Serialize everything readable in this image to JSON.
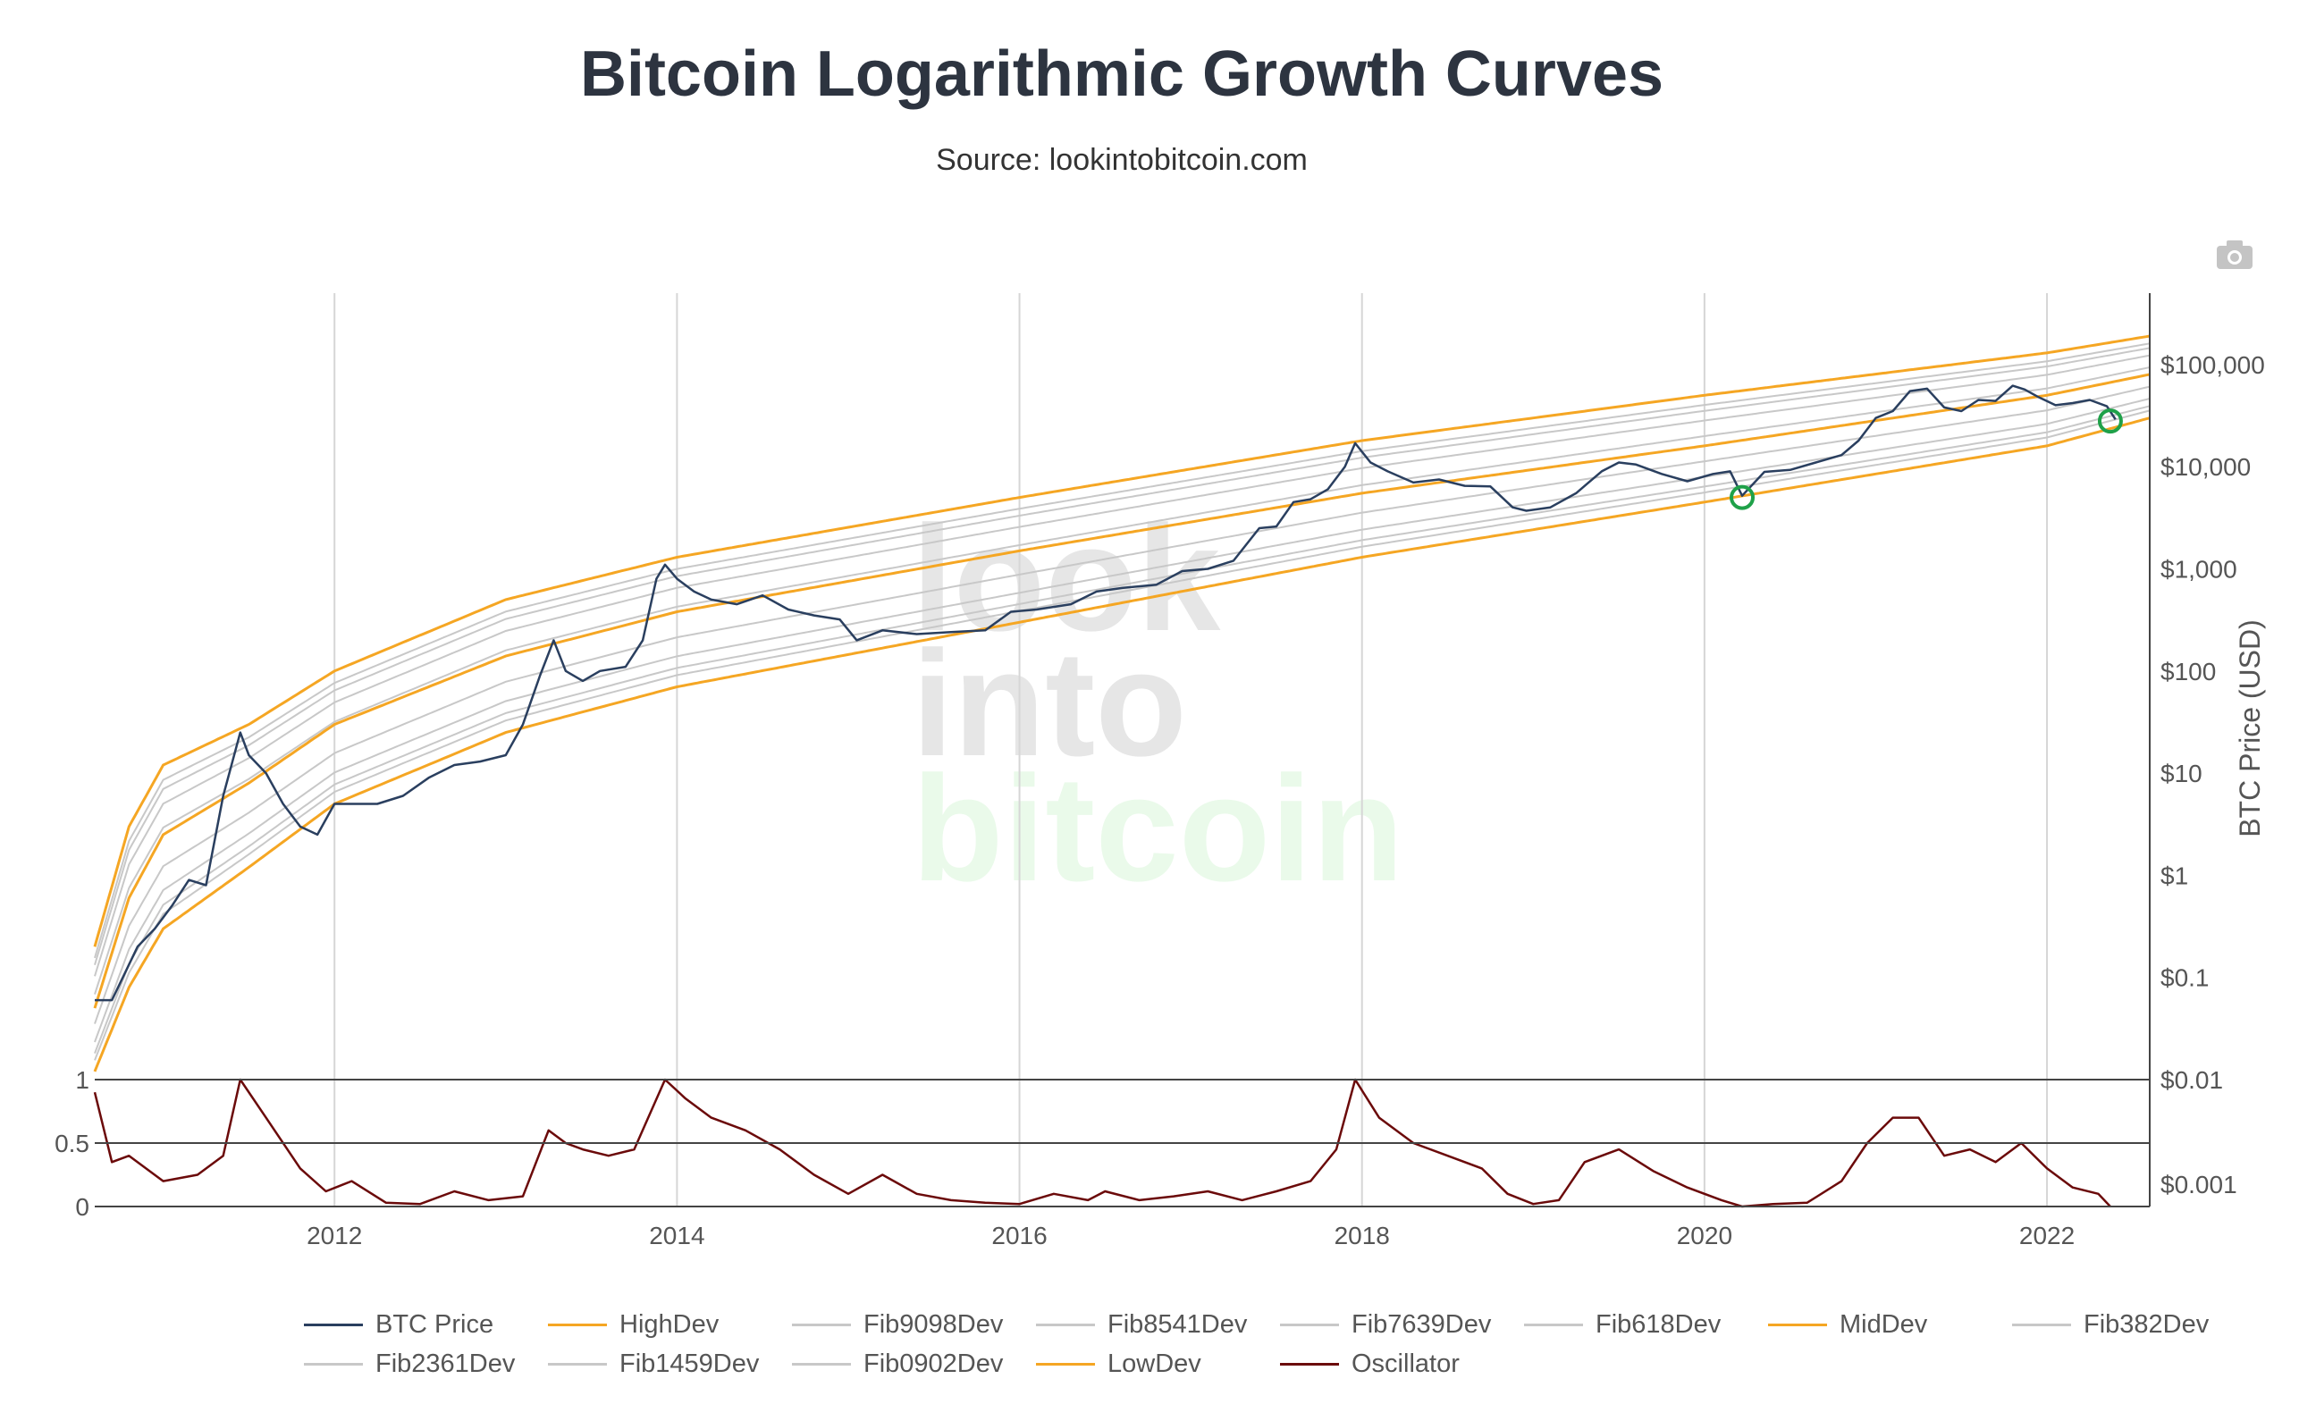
{
  "title": "Bitcoin Logarithmic Growth Curves",
  "subtitle": "Source: lookintobitcoin.com",
  "watermark": {
    "line1": "look",
    "line2": "into",
    "line3": "bitcoin"
  },
  "colors": {
    "btc": "#2a3f5f",
    "orange": "#f5a623",
    "fib": "#c8c8c8",
    "oscillator": "#6b0a0a",
    "marker": "#1fa149",
    "grid": "#d6d6d6"
  },
  "legend": [
    [
      {
        "name": "BTC Price",
        "color": "#2a3f5f"
      },
      {
        "name": "HighDev",
        "color": "#f5a623"
      },
      {
        "name": "Fib9098Dev",
        "color": "#c8c8c8"
      },
      {
        "name": "Fib8541Dev",
        "color": "#c8c8c8"
      },
      {
        "name": "Fib7639Dev",
        "color": "#c8c8c8"
      },
      {
        "name": "Fib618Dev",
        "color": "#c8c8c8"
      },
      {
        "name": "MidDev",
        "color": "#f5a623"
      },
      {
        "name": "Fib382Dev",
        "color": "#c8c8c8"
      }
    ],
    [
      {
        "name": "Fib2361Dev",
        "color": "#c8c8c8"
      },
      {
        "name": "Fib1459Dev",
        "color": "#c8c8c8"
      },
      {
        "name": "Fib0902Dev",
        "color": "#c8c8c8"
      },
      {
        "name": "LowDev",
        "color": "#f5a623"
      },
      {
        "name": "Oscillator",
        "color": "#6b0a0a"
      }
    ]
  ],
  "chart_data": [
    {
      "type": "line",
      "yscale": "log",
      "ylabel": "BTC Price (USD)",
      "xlim": [
        2010.6,
        2022.6
      ],
      "ylim": [
        0.01,
        500000
      ],
      "x_ticks": [
        "2012",
        "2014",
        "2016",
        "2018",
        "2020",
        "2022"
      ],
      "x_tick_values": [
        2012,
        2014,
        2016,
        2018,
        2020,
        2022
      ],
      "y_ticks": [
        "$0.01",
        "$0.1",
        "$1",
        "$10",
        "$100",
        "$1,000",
        "$10,000",
        "$100,000"
      ],
      "y_tick_values": [
        0.01,
        0.1,
        1,
        10,
        100,
        1000,
        10000,
        100000
      ],
      "grid": "vertical",
      "legend_position": "bottom",
      "series": [
        {
          "name": "BTC Price",
          "x": [
            2010.6,
            2010.7,
            2010.85,
            2010.95,
            2011.05,
            2011.15,
            2011.25,
            2011.35,
            2011.45,
            2011.5,
            2011.6,
            2011.7,
            2011.8,
            2011.9,
            2012.0,
            2012.1,
            2012.25,
            2012.4,
            2012.55,
            2012.7,
            2012.85,
            2013.0,
            2013.1,
            2013.2,
            2013.28,
            2013.35,
            2013.45,
            2013.55,
            2013.7,
            2013.8,
            2013.88,
            2013.93,
            2014.0,
            2014.1,
            2014.2,
            2014.35,
            2014.5,
            2014.65,
            2014.8,
            2014.95,
            2015.05,
            2015.2,
            2015.4,
            2015.6,
            2015.8,
            2015.95,
            2016.1,
            2016.3,
            2016.45,
            2016.6,
            2016.8,
            2016.95,
            2017.1,
            2017.25,
            2017.4,
            2017.5,
            2017.6,
            2017.7,
            2017.8,
            2017.9,
            2017.96,
            2018.05,
            2018.15,
            2018.3,
            2018.45,
            2018.6,
            2018.75,
            2018.88,
            2018.96,
            2019.1,
            2019.25,
            2019.4,
            2019.5,
            2019.6,
            2019.75,
            2019.9,
            2020.05,
            2020.15,
            2020.22,
            2020.35,
            2020.5,
            2020.65,
            2020.8,
            2020.9,
            2021.0,
            2021.1,
            2021.2,
            2021.3,
            2021.4,
            2021.5,
            2021.6,
            2021.7,
            2021.8,
            2021.87,
            2021.95,
            2022.05,
            2022.15,
            2022.25,
            2022.35,
            2022.4
          ],
          "y": [
            0.06,
            0.06,
            0.2,
            0.3,
            0.5,
            0.9,
            0.8,
            6,
            25,
            15,
            10,
            5,
            3,
            2.5,
            5,
            5,
            5,
            6,
            9,
            12,
            13,
            15,
            30,
            90,
            200,
            100,
            80,
            100,
            110,
            200,
            800,
            1100,
            800,
            600,
            500,
            450,
            550,
            400,
            350,
            320,
            200,
            250,
            230,
            240,
            250,
            380,
            400,
            450,
            600,
            650,
            700,
            950,
            1000,
            1200,
            2500,
            2600,
            4500,
            4800,
            6000,
            10000,
            17000,
            11000,
            9000,
            7000,
            7500,
            6500,
            6400,
            4000,
            3700,
            4000,
            5500,
            9000,
            11000,
            10500,
            8500,
            7200,
            8500,
            9000,
            5200,
            8900,
            9300,
            11000,
            13000,
            18000,
            30000,
            35000,
            55000,
            58000,
            38000,
            35000,
            45000,
            44000,
            62000,
            57000,
            48000,
            40000,
            42000,
            45000,
            39000,
            29000
          ]
        },
        {
          "name": "HighDev",
          "x": [
            2010.6,
            2010.8,
            2011.0,
            2011.5,
            2012.0,
            2013.0,
            2014.0,
            2016.0,
            2018.0,
            2020.0,
            2022.0,
            2022.6
          ],
          "y": [
            0.2,
            3,
            12,
            30,
            100,
            500,
            1300,
            5000,
            18000,
            50000,
            130000,
            190000
          ]
        },
        {
          "name": "MidDev",
          "x": [
            2010.6,
            2010.8,
            2011.0,
            2011.5,
            2012.0,
            2013.0,
            2014.0,
            2016.0,
            2018.0,
            2020.0,
            2022.0,
            2022.6
          ],
          "y": [
            0.05,
            0.6,
            2.5,
            8,
            30,
            140,
            380,
            1500,
            5500,
            16000,
            50000,
            80000
          ]
        },
        {
          "name": "LowDev",
          "x": [
            2010.6,
            2010.8,
            2011.0,
            2011.5,
            2012.0,
            2013.0,
            2014.0,
            2016.0,
            2018.0,
            2020.0,
            2022.0,
            2022.6
          ],
          "y": [
            0.012,
            0.08,
            0.3,
            1.2,
            5,
            25,
            70,
            300,
            1300,
            4500,
            16000,
            30000
          ]
        }
      ],
      "annotations": [
        {
          "shape": "circle",
          "x": 2020.22,
          "y": 5000
        },
        {
          "shape": "circle",
          "x": 2022.37,
          "y": 28000
        }
      ]
    },
    {
      "type": "line",
      "xlim": [
        2010.6,
        2022.6
      ],
      "ylim": [
        0,
        1
      ],
      "y_ticks": [
        "0",
        "0.5",
        "1"
      ],
      "y_tick_values": [
        0,
        0.5,
        1
      ],
      "series": [
        {
          "name": "Oscillator",
          "x": [
            2010.6,
            2010.7,
            2010.8,
            2011.0,
            2011.2,
            2011.35,
            2011.45,
            2011.6,
            2011.8,
            2011.95,
            2012.1,
            2012.3,
            2012.5,
            2012.7,
            2012.9,
            2013.1,
            2013.25,
            2013.35,
            2013.45,
            2013.6,
            2013.75,
            2013.93,
            2014.05,
            2014.2,
            2014.4,
            2014.6,
            2014.8,
            2015.0,
            2015.2,
            2015.4,
            2015.6,
            2015.8,
            2016.0,
            2016.2,
            2016.4,
            2016.5,
            2016.7,
            2016.9,
            2017.1,
            2017.3,
            2017.5,
            2017.7,
            2017.85,
            2017.96,
            2018.1,
            2018.3,
            2018.5,
            2018.7,
            2018.85,
            2019.0,
            2019.15,
            2019.3,
            2019.5,
            2019.7,
            2019.9,
            2020.1,
            2020.22,
            2020.4,
            2020.6,
            2020.8,
            2020.95,
            2021.1,
            2021.25,
            2021.4,
            2021.55,
            2021.7,
            2021.85,
            2022.0,
            2022.15,
            2022.3,
            2022.37
          ],
          "y": [
            0.9,
            0.35,
            0.4,
            0.2,
            0.25,
            0.4,
            1.0,
            0.7,
            0.3,
            0.12,
            0.2,
            0.03,
            0.02,
            0.12,
            0.05,
            0.08,
            0.6,
            0.5,
            0.45,
            0.4,
            0.45,
            1.0,
            0.85,
            0.7,
            0.6,
            0.45,
            0.25,
            0.1,
            0.25,
            0.1,
            0.05,
            0.03,
            0.02,
            0.1,
            0.05,
            0.12,
            0.05,
            0.08,
            0.12,
            0.05,
            0.12,
            0.2,
            0.45,
            1.0,
            0.7,
            0.5,
            0.4,
            0.3,
            0.1,
            0.02,
            0.05,
            0.35,
            0.45,
            0.28,
            0.15,
            0.05,
            0.0,
            0.02,
            0.03,
            0.2,
            0.5,
            0.7,
            0.7,
            0.4,
            0.45,
            0.35,
            0.5,
            0.3,
            0.15,
            0.1,
            0.0
          ]
        }
      ]
    }
  ]
}
